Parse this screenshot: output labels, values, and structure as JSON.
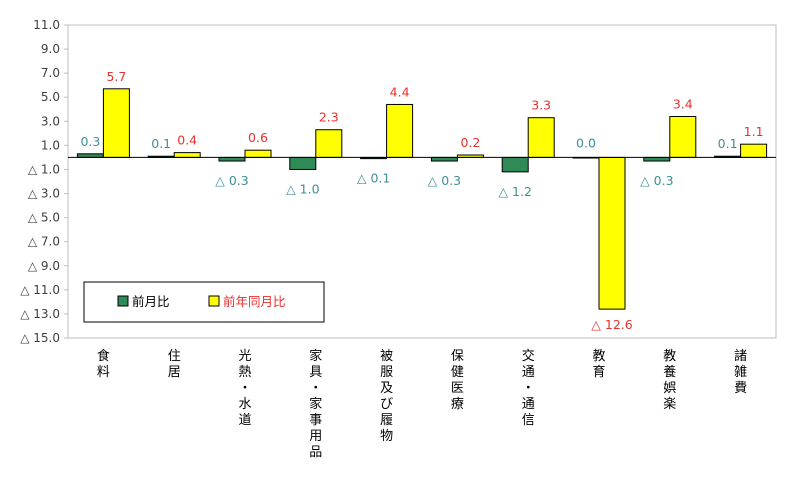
{
  "chart_data": {
    "type": "bar",
    "categories": [
      "食料",
      "住居",
      "光熱・水道",
      "家具・家事用品",
      "被服及び履物",
      "保健医療",
      "交通・通信",
      "教育",
      "教養娯楽",
      "諸雑費"
    ],
    "series": [
      {
        "name": "前月比",
        "values": [
          0.3,
          0.1,
          -0.3,
          -1.0,
          -0.1,
          -0.3,
          -1.2,
          0.0,
          -0.3,
          0.1
        ],
        "labels": [
          "0.3",
          "0.1",
          "△ 0.3",
          "△ 1.0",
          "△ 0.1",
          "△ 0.3",
          "△ 1.2",
          "0.0",
          "△ 0.3",
          "0.1"
        ],
        "color": "#2e8b57",
        "label_color": "#3f8f99"
      },
      {
        "name": "前年同月比",
        "values": [
          5.7,
          0.4,
          0.6,
          2.3,
          4.4,
          0.2,
          3.3,
          -12.6,
          3.4,
          1.1
        ],
        "labels": [
          "5.7",
          "0.4",
          "0.6",
          "2.3",
          "4.4",
          "0.2",
          "3.3",
          "△ 12.6",
          "3.4",
          "1.1"
        ],
        "color": "#ffff00",
        "label_color": "#e8302e"
      }
    ],
    "ylim": [
      -15,
      11
    ],
    "yticks": [
      11,
      9,
      7,
      5,
      3,
      1,
      -1,
      -3,
      -5,
      -7,
      -9,
      -11,
      -13,
      -15
    ],
    "ytick_labels": [
      "11.0",
      "9.0",
      "7.0",
      "5.0",
      "3.0",
      "1.0",
      "△ 1.0",
      "△ 3.0",
      "△ 5.0",
      "△ 7.0",
      "△ 9.0",
      "△ 11.0",
      "△ 13.0",
      "△ 15.0"
    ],
    "grid": false,
    "legend_position": "bottom-left"
  }
}
